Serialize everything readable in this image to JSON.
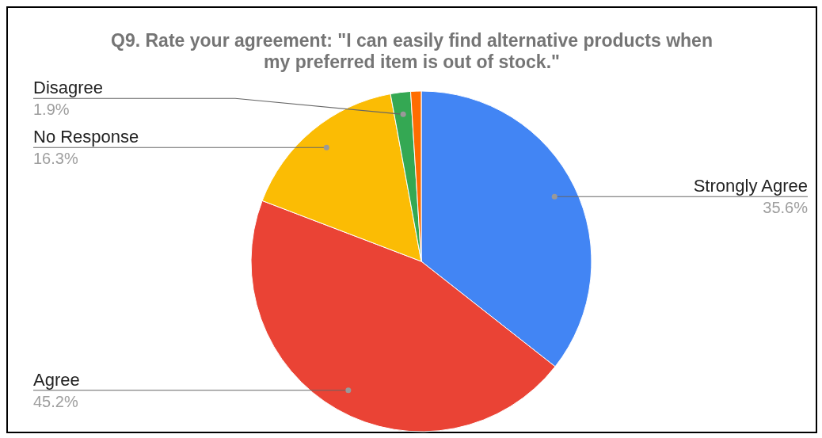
{
  "chart_data": {
    "type": "pie",
    "title": "Q9. Rate your agreement: \"I can easily find alternative products when my preferred item is out of stock.\"",
    "categories": [
      "Strongly Agree",
      "Agree",
      "No Response",
      "Disagree",
      null
    ],
    "values": [
      35.6,
      45.2,
      16.3,
      1.9,
      1.0
    ],
    "colors": [
      "#4285f4",
      "#ea4335",
      "#fbbc04",
      "#34a853",
      "#ff6d01"
    ],
    "value_labels": [
      "35.6%",
      "45.2%",
      "16.3%",
      "1.9%",
      null
    ]
  }
}
